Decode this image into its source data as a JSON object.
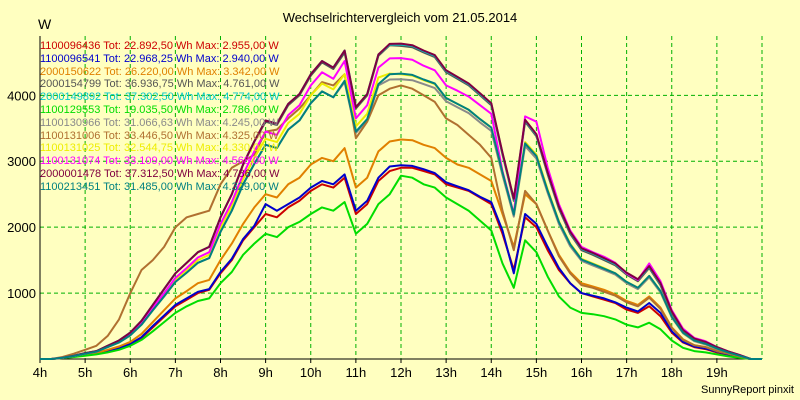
{
  "chart_data": {
    "type": "line",
    "title": "Wechselrichtervergleich vom 21.05.2014",
    "ylabel": "W",
    "footer": "SunnyReport pinxit",
    "x_ticks": [
      "4h",
      "5h",
      "6h",
      "7h",
      "8h",
      "9h",
      "10h",
      "11h",
      "12h",
      "13h",
      "14h",
      "15h",
      "16h",
      "17h",
      "18h",
      "19h"
    ],
    "y_ticks": [
      1000,
      2000,
      3000,
      4000
    ],
    "xlim": [
      4,
      20
    ],
    "ylim": [
      0,
      4900
    ],
    "grid": true,
    "legend_position": "top-left",
    "x": [
      4.0,
      4.25,
      4.5,
      4.75,
      5.0,
      5.25,
      5.5,
      5.75,
      6.0,
      6.25,
      6.5,
      6.75,
      7.0,
      7.25,
      7.5,
      7.75,
      8.0,
      8.25,
      8.5,
      8.75,
      9.0,
      9.25,
      9.5,
      9.75,
      10.0,
      10.25,
      10.5,
      10.75,
      11.0,
      11.25,
      11.5,
      11.75,
      12.0,
      12.25,
      12.5,
      12.75,
      13.0,
      13.25,
      13.5,
      13.75,
      14.0,
      14.25,
      14.5,
      14.75,
      15.0,
      15.25,
      15.5,
      15.75,
      16.0,
      16.25,
      16.5,
      16.75,
      17.0,
      17.25,
      17.5,
      17.75,
      18.0,
      18.25,
      18.5,
      18.75,
      19.0,
      19.25,
      19.5,
      19.75,
      20.0
    ],
    "series": [
      {
        "name": "1100096436 Tot: 22.892,50 Wh Max: 2.955,00 W",
        "color": "#cc0000",
        "values": [
          0,
          0,
          20,
          40,
          60,
          80,
          120,
          160,
          220,
          320,
          480,
          640,
          800,
          900,
          1000,
          1050,
          1300,
          1500,
          1800,
          2000,
          2200,
          2150,
          2300,
          2400,
          2550,
          2650,
          2600,
          2750,
          2200,
          2350,
          2700,
          2850,
          2900,
          2900,
          2850,
          2800,
          2650,
          2600,
          2550,
          2450,
          2350,
          1900,
          1350,
          2150,
          2000,
          1650,
          1350,
          1150,
          1000,
          950,
          900,
          850,
          750,
          700,
          800,
          650,
          400,
          250,
          180,
          150,
          100,
          60,
          30,
          0,
          0
        ]
      },
      {
        "name": "1100096541 Tot: 22.968,25 Wh Max: 2.940,00 W",
        "color": "#0000cc",
        "values": [
          0,
          0,
          20,
          40,
          60,
          80,
          120,
          160,
          230,
          330,
          500,
          660,
          820,
          920,
          1020,
          1060,
          1320,
          1520,
          1820,
          2020,
          2350,
          2250,
          2350,
          2450,
          2600,
          2700,
          2650,
          2800,
          2250,
          2400,
          2750,
          2920,
          2940,
          2930,
          2880,
          2820,
          2680,
          2620,
          2560,
          2460,
          2380,
          1950,
          1300,
          2200,
          2050,
          1700,
          1380,
          1150,
          1000,
          960,
          920,
          860,
          780,
          720,
          850,
          700,
          420,
          260,
          190,
          160,
          110,
          70,
          35,
          0,
          0
        ]
      },
      {
        "name": "2000150622 Tot: 26.220,00 Wh Max: 3.342,00 W",
        "color": "#e08000",
        "values": [
          0,
          0,
          20,
          40,
          70,
          90,
          140,
          190,
          260,
          380,
          560,
          740,
          920,
          1030,
          1150,
          1200,
          1500,
          1750,
          2050,
          2300,
          2500,
          2450,
          2650,
          2750,
          2950,
          3050,
          3000,
          3200,
          2600,
          2750,
          3150,
          3300,
          3330,
          3320,
          3250,
          3200,
          3050,
          2950,
          2900,
          2800,
          2700,
          2200,
          1700,
          2500,
          2350,
          1950,
          1580,
          1320,
          1150,
          1100,
          1050,
          980,
          880,
          820,
          950,
          780,
          480,
          300,
          210,
          180,
          120,
          80,
          40,
          0,
          0
        ]
      },
      {
        "name": "2000154799 Tot: 36.936,75 Wh Max: 4.761,00 W",
        "color": "#555555",
        "values": [
          0,
          0,
          20,
          50,
          90,
          120,
          200,
          280,
          400,
          580,
          820,
          1060,
          1300,
          1460,
          1620,
          1700,
          2150,
          2500,
          2950,
          3300,
          3600,
          3550,
          3850,
          4000,
          4300,
          4500,
          4400,
          4650,
          3800,
          4000,
          4600,
          4760,
          4750,
          4730,
          4650,
          4580,
          4350,
          4250,
          4150,
          4000,
          3850,
          3100,
          2400,
          3600,
          3380,
          2800,
          2280,
          1900,
          1650,
          1580,
          1500,
          1420,
          1280,
          1180,
          1380,
          1120,
          700,
          430,
          300,
          250,
          170,
          110,
          55,
          0,
          0
        ]
      },
      {
        "name": "2000149892 Tot: 37.302,50 Wh Max: 4.774,00 W",
        "color": "#00c8c8",
        "values": [
          0,
          0,
          20,
          50,
          90,
          120,
          200,
          280,
          400,
          580,
          820,
          1060,
          1300,
          1460,
          1620,
          1700,
          2150,
          2500,
          2950,
          3300,
          3620,
          3570,
          3870,
          4020,
          4320,
          4520,
          4420,
          4680,
          3820,
          4020,
          4620,
          4770,
          4770,
          4750,
          4670,
          4600,
          4370,
          4270,
          4170,
          4020,
          3870,
          3120,
          2420,
          3620,
          3400,
          2820,
          2300,
          1920,
          1670,
          1600,
          1520,
          1440,
          1300,
          1200,
          1400,
          1140,
          720,
          440,
          310,
          260,
          180,
          115,
          60,
          0,
          0
        ]
      },
      {
        "name": "1100129553 Tot: 19.035,50 Wh Max: 2.786,00 W",
        "color": "#00dd00",
        "values": [
          0,
          0,
          15,
          30,
          50,
          70,
          100,
          140,
          200,
          290,
          420,
          560,
          700,
          800,
          880,
          920,
          1150,
          1320,
          1580,
          1750,
          1900,
          1850,
          2000,
          2080,
          2200,
          2300,
          2250,
          2380,
          1900,
          2050,
          2350,
          2500,
          2780,
          2750,
          2650,
          2600,
          2450,
          2350,
          2250,
          2100,
          1950,
          1450,
          1080,
          1800,
          1620,
          1250,
          950,
          780,
          700,
          680,
          650,
          600,
          520,
          480,
          550,
          450,
          280,
          170,
          120,
          100,
          70,
          40,
          20,
          0,
          0
        ]
      },
      {
        "name": "1100130966 Tot: 31.066,63 Wh Max: 4.245,00 W",
        "color": "#8a8a8a",
        "values": [
          0,
          0,
          20,
          45,
          80,
          110,
          180,
          250,
          360,
          520,
          740,
          950,
          1170,
          1310,
          1460,
          1530,
          1930,
          2250,
          2650,
          2960,
          3250,
          3200,
          3480,
          3620,
          3880,
          4060,
          3970,
          4200,
          3430,
          3620,
          4150,
          4240,
          4245,
          4230,
          4170,
          4110,
          3910,
          3820,
          3730,
          3590,
          3460,
          2790,
          2160,
          3230,
          3040,
          2520,
          2050,
          1710,
          1490,
          1420,
          1350,
          1280,
          1150,
          1060,
          1240,
          1010,
          630,
          390,
          270,
          220,
          150,
          100,
          50,
          0,
          0
        ]
      },
      {
        "name": "1100131006 Tot: 33.446,50 Wh Max: 4.325,00 W",
        "color": "#b07030",
        "values": [
          0,
          0,
          30,
          80,
          140,
          200,
          350,
          600,
          1000,
          1350,
          1500,
          1700,
          2000,
          2150,
          2200,
          2250,
          2650,
          2900,
          3000,
          3100,
          3450,
          3480,
          3650,
          3800,
          4000,
          4200,
          4150,
          4320,
          3350,
          3600,
          4000,
          4100,
          4150,
          4100,
          4000,
          3900,
          3650,
          3550,
          3400,
          3250,
          3050,
          2250,
          1650,
          2550,
          2350,
          1950,
          1560,
          1300,
          1120,
          1080,
          1020,
          960,
          860,
          800,
          930,
          760,
          470,
          290,
          210,
          180,
          120,
          80,
          40,
          0,
          0
        ]
      },
      {
        "name": "1100131025 Tot: 32.544,75 Wh Max: 4.330,00 W",
        "color": "#eeee00",
        "values": [
          0,
          0,
          20,
          45,
          80,
          110,
          185,
          260,
          370,
          535,
          760,
          980,
          1200,
          1350,
          1500,
          1580,
          1990,
          2320,
          2730,
          3050,
          3340,
          3290,
          3580,
          3720,
          4000,
          4180,
          4090,
          4320,
          3530,
          3720,
          4270,
          4330,
          4320,
          4300,
          4230,
          4170,
          3960,
          3870,
          3780,
          3640,
          3510,
          2840,
          2200,
          3290,
          3100,
          2570,
          2090,
          1750,
          1520,
          1450,
          1380,
          1300,
          1170,
          1080,
          1260,
          1030,
          640,
          400,
          280,
          230,
          160,
          100,
          50,
          0,
          0
        ]
      },
      {
        "name": "1100131074 Tot: 33.109,00 Wh Max: 4.568,00 W",
        "color": "#ff00ff",
        "values": [
          0,
          0,
          20,
          45,
          80,
          110,
          190,
          270,
          380,
          550,
          780,
          1000,
          1230,
          1380,
          1540,
          1620,
          2050,
          2380,
          2800,
          3150,
          3450,
          3400,
          3700,
          3850,
          4150,
          4350,
          4250,
          4520,
          3650,
          3850,
          4420,
          4560,
          4565,
          4540,
          4450,
          4380,
          4150,
          4070,
          3980,
          3850,
          3720,
          2850,
          2200,
          3680,
          3600,
          2900,
          2350,
          1950,
          1700,
          1620,
          1550,
          1460,
          1300,
          1200,
          1450,
          1180,
          740,
          460,
          320,
          270,
          180,
          115,
          60,
          0,
          0
        ]
      },
      {
        "name": "2000001478 Tot: 37.312,50 Wh Max: 4.786,00 W",
        "color": "#800040",
        "values": [
          0,
          0,
          20,
          50,
          90,
          120,
          200,
          280,
          400,
          580,
          820,
          1060,
          1300,
          1460,
          1620,
          1700,
          2150,
          2500,
          2950,
          3300,
          3620,
          3570,
          3870,
          4020,
          4320,
          4520,
          4420,
          4680,
          3820,
          4020,
          4620,
          4780,
          4785,
          4760,
          4680,
          4610,
          4380,
          4280,
          4180,
          4030,
          3880,
          3130,
          2430,
          3630,
          3410,
          2830,
          2310,
          1930,
          1680,
          1610,
          1530,
          1450,
          1310,
          1210,
          1410,
          1150,
          720,
          440,
          310,
          260,
          180,
          115,
          60,
          0,
          0
        ]
      },
      {
        "name": "1100213451 Tot: 31.485,00 Wh Max: 4.329,00 W",
        "color": "#008080",
        "values": [
          0,
          0,
          20,
          45,
          80,
          110,
          180,
          250,
          360,
          520,
          740,
          950,
          1170,
          1310,
          1460,
          1530,
          1930,
          2250,
          2650,
          2960,
          3250,
          3200,
          3480,
          3620,
          3880,
          4060,
          3970,
          4220,
          3450,
          3640,
          4170,
          4320,
          4329,
          4310,
          4240,
          4180,
          3960,
          3870,
          3780,
          3640,
          3510,
          2830,
          2190,
          3270,
          3080,
          2550,
          2080,
          1740,
          1510,
          1440,
          1370,
          1300,
          1170,
          1080,
          1260,
          1030,
          640,
          400,
          280,
          230,
          160,
          100,
          50,
          0,
          0
        ]
      }
    ]
  }
}
